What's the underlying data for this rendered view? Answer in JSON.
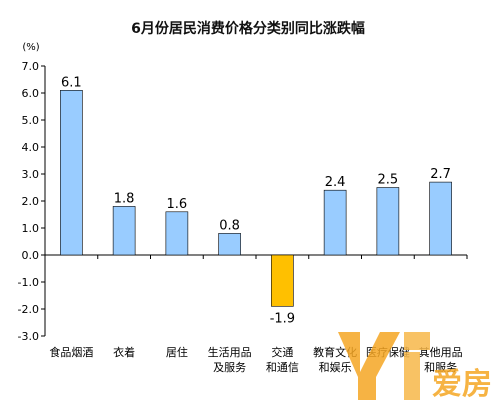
{
  "chart_data": {
    "type": "bar",
    "title": "6月份居民消费价格分类别同比涨跌幅",
    "ylabel": "(%)",
    "xlabel": "",
    "ylim": [
      -3.0,
      7.0
    ],
    "yticks": [
      "7.0",
      "6.0",
      "5.0",
      "4.0",
      "3.0",
      "2.0",
      "1.0",
      "0.0",
      "-1.0",
      "-2.0",
      "-3.0"
    ],
    "categories": [
      [
        "食品烟酒"
      ],
      [
        "衣着"
      ],
      [
        "居住"
      ],
      [
        "生活用品",
        "及服务"
      ],
      [
        "交通",
        "和通信"
      ],
      [
        "教育文化",
        "和娱乐"
      ],
      [
        "医疗保健"
      ],
      [
        "其他用品",
        "和服务"
      ]
    ],
    "values": [
      6.1,
      1.8,
      1.6,
      0.8,
      -1.9,
      2.4,
      2.5,
      2.7
    ],
    "value_labels": [
      "6.1",
      "1.8",
      "1.6",
      "0.8",
      "-1.9",
      "2.4",
      "2.5",
      "2.7"
    ],
    "colors": {
      "positive": "#99CCFF",
      "negative": "#FFC000",
      "bar_stroke": "#000000"
    },
    "grid": false,
    "legend": "none"
  },
  "watermark": {
    "text": "爱房",
    "colors": [
      "#F5A623",
      "#F7B84A"
    ]
  }
}
